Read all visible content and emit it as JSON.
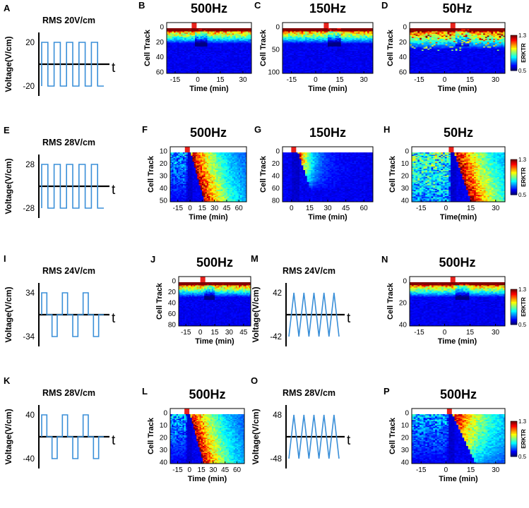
{
  "colors": {
    "wave": "#3a8fd8",
    "axis": "#000000",
    "stim_marker": "#e8221c",
    "heat_low": "#0a1a8c",
    "heat_high": "#8b0000"
  },
  "colorbar": {
    "max_label": "1.3",
    "min_label": "0.5",
    "title": "ERKTR"
  },
  "panels": [
    {
      "type": "wave",
      "letter": "A",
      "title": "RMS 20V/cm",
      "ylabel": "Voltage(V/cm)",
      "t_label": "t",
      "y_ticks": [
        "20",
        "-20"
      ],
      "wave_shape": "square",
      "cycles": 5,
      "duty": 0.5
    },
    {
      "type": "heatmap",
      "letter": "B",
      "title": "500Hz",
      "ylabel": "Cell Track",
      "xlabel": "Time (min)",
      "x_ticks": [
        "-15",
        "0",
        "15",
        "30"
      ],
      "y_ticks": [
        "0",
        "20",
        "40",
        "60"
      ],
      "profile": "early",
      "stim": 0.32,
      "colorbar": false
    },
    {
      "type": "heatmap",
      "letter": "C",
      "title": "150Hz",
      "ylabel": "Cell Track",
      "xlabel": "Time (min)",
      "x_ticks": [
        "-15",
        "0",
        "15",
        "30"
      ],
      "y_ticks": [
        "0",
        "50",
        "100"
      ],
      "profile": "early",
      "stim": 0.48,
      "colorbar": false
    },
    {
      "type": "heatmap",
      "letter": "D",
      "title": "50Hz",
      "ylabel": "Cell Track",
      "xlabel": "Time (min)",
      "x_ticks": [
        "-15",
        "0",
        "15",
        "30"
      ],
      "y_ticks": [
        "0",
        "20",
        "40",
        "60"
      ],
      "profile": "early-noisy",
      "stim": 0.45,
      "colorbar": true
    },
    {
      "type": "wave",
      "letter": "E",
      "title": "RMS 28V/cm",
      "ylabel": "Voltage(V/cm)",
      "t_label": "t",
      "y_ticks": [
        "28",
        "-28"
      ],
      "wave_shape": "square",
      "cycles": 5,
      "duty": 0.5
    },
    {
      "type": "heatmap",
      "letter": "F",
      "title": "500Hz",
      "ylabel": "Cell Track",
      "xlabel": "Time (min)",
      "x_ticks": [
        "-15",
        "0",
        "15",
        "30",
        "45",
        "60"
      ],
      "y_ticks": [
        "10",
        "20",
        "30",
        "40",
        "50"
      ],
      "profile": "response",
      "stim": 0.22,
      "colorbar": false
    },
    {
      "type": "heatmap",
      "letter": "G",
      "title": "150Hz",
      "ylabel": "Cell Track",
      "xlabel": "Time (min)",
      "x_ticks": [
        "0",
        "15",
        "30",
        "45",
        "60"
      ],
      "y_ticks": [
        "0",
        "20",
        "40",
        "60",
        "80"
      ],
      "profile": "response-weak",
      "stim": 0.12,
      "colorbar": false
    },
    {
      "type": "heatmap",
      "letter": "H",
      "title": "50Hz",
      "ylabel": "Cell Track",
      "xlabel": "Time(min)",
      "x_ticks": [
        "-15",
        "0",
        "15",
        "30"
      ],
      "y_ticks": [
        "0",
        "10",
        "20",
        "30",
        "40"
      ],
      "profile": "response-mixed",
      "stim": 0.42,
      "colorbar": true
    },
    {
      "type": "wave",
      "letter": "I",
      "title": "RMS 24V/cm",
      "ylabel": "Voltage(V/cm)",
      "t_label": "t",
      "y_ticks": [
        "34",
        "-34"
      ],
      "wave_shape": "square",
      "cycles": 3,
      "duty": 0.25
    },
    {
      "type": "heatmap",
      "letter": "J",
      "title": "500Hz",
      "ylabel": "Cell Track",
      "xlabel": "Time (min)",
      "x_ticks": [
        "-15",
        "0",
        "15",
        "30",
        "45"
      ],
      "y_ticks": [
        "0",
        "20",
        "40",
        "60",
        "80"
      ],
      "profile": "early",
      "stim": 0.33,
      "colorbar": false
    },
    {
      "type": "wave",
      "letter": "M",
      "title": "RMS 24V/cm",
      "ylabel": "Voltage(V/cm)",
      "t_label": "t",
      "y_ticks": [
        "42",
        "-42"
      ],
      "wave_shape": "triangle",
      "cycles": 5,
      "duty": 0.5
    },
    {
      "type": "heatmap",
      "letter": "N",
      "title": "500Hz",
      "ylabel": "Cell Track",
      "xlabel": "Time (min)",
      "x_ticks": [
        "-15",
        "0",
        "15",
        "30"
      ],
      "y_ticks": [
        "0",
        "20",
        "40"
      ],
      "profile": "early",
      "stim": 0.45,
      "colorbar": true
    },
    {
      "type": "wave",
      "letter": "K",
      "title": "RMS 28V/cm",
      "ylabel": "Voltage(V/cm)",
      "t_label": "t",
      "y_ticks": [
        "40",
        "-40"
      ],
      "wave_shape": "square",
      "cycles": 3,
      "duty": 0.25
    },
    {
      "type": "heatmap",
      "letter": "L",
      "title": "500Hz",
      "ylabel": "Cell Track",
      "xlabel": "Time (min)",
      "x_ticks": [
        "-15",
        "0",
        "15",
        "30",
        "45",
        "60"
      ],
      "y_ticks": [
        "0",
        "10",
        "20",
        "30",
        "40"
      ],
      "profile": "response",
      "stim": 0.22,
      "colorbar": false
    },
    {
      "type": "wave",
      "letter": "O",
      "title": "RMS 28V/cm",
      "ylabel": "Voltage(V/cm)",
      "t_label": "t",
      "y_ticks": [
        "48",
        "-48"
      ],
      "wave_shape": "triangle",
      "cycles": 5,
      "duty": 0.5
    },
    {
      "type": "heatmap",
      "letter": "P",
      "title": "500Hz",
      "ylabel": "Cell Track",
      "xlabel": "Time (min)",
      "x_ticks": [
        "-15",
        "0",
        "15",
        "30"
      ],
      "y_ticks": [
        "0",
        "10",
        "20",
        "30",
        "40"
      ],
      "profile": "response-late",
      "stim": 0.4,
      "colorbar": true
    }
  ]
}
